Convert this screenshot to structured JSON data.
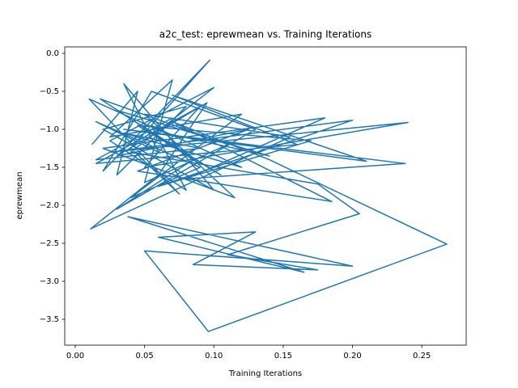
{
  "chart_data": {
    "type": "line",
    "title": "a2c_test: eprewmean vs. Training Iterations",
    "x_label": "Training Iterations",
    "y_label": "eprewmean",
    "xlim": [
      -0.0076,
      0.282
    ],
    "ylim": [
      -3.84,
      0.085
    ],
    "xticks": [
      {
        "value": 0,
        "label": "0.00"
      },
      {
        "value": 0.05,
        "label": "0.05"
      },
      {
        "value": 0.1,
        "label": "0.10"
      },
      {
        "value": 0.15,
        "label": "0.15"
      },
      {
        "value": 0.2,
        "label": "0.20"
      },
      {
        "value": 0.25,
        "label": "0.25"
      }
    ],
    "yticks": [
      {
        "value": 0,
        "label": "0.0"
      },
      {
        "value": -0.5,
        "label": "−0.5"
      },
      {
        "value": -1,
        "label": "−1.0"
      },
      {
        "value": -1.5,
        "label": "−1.5"
      },
      {
        "value": -2,
        "label": "−2.0"
      },
      {
        "value": -2.5,
        "label": "−2.5"
      },
      {
        "value": -3,
        "label": "−3.0"
      },
      {
        "value": -3.5,
        "label": "−3.5"
      }
    ],
    "grid": false,
    "series": [
      {
        "color": "#1f77b4",
        "x": [
          0.012,
          0.045,
          0.03,
          0.08,
          0.02,
          0.1,
          0.035,
          0.06,
          0.015,
          0.09,
          0.04,
          0.12,
          0.025,
          0.07,
          0.05,
          0.11,
          0.018,
          0.085,
          0.03,
          0.13,
          0.055,
          0.02,
          0.097,
          0.04,
          0.075,
          0.01,
          0.065,
          0.14,
          0.03,
          0.105,
          0.045,
          0.17,
          0.06,
          0.2,
          0.025,
          0.24,
          0.05,
          0.09,
          0.015,
          0.16,
          0.07,
          0.21,
          0.035,
          0.238,
          0.08,
          0.18,
          0.02,
          0.115,
          0.05,
          0.155,
          0.011,
          0.06,
          0.095,
          0.03,
          0.125,
          0.045,
          0.185,
          0.07,
          0.14,
          0.268,
          0.096,
          0.05,
          0.2,
          0.038,
          0.165,
          0.06,
          0.13,
          0.085,
          0.175,
          0.11,
          0.205,
          0.175,
          0.04,
          0.1,
          0.025,
          0.08,
          0.055,
          0.12,
          0.035,
          0.09,
          0.015,
          0.07
        ],
        "values": [
          -1.2,
          -0.5,
          -1.6,
          -0.7,
          -1.0,
          -1.8,
          -0.4,
          -1.3,
          -0.9,
          -1.5,
          -1.9,
          -0.8,
          -1.1,
          -0.35,
          -1.7,
          -1.2,
          -0.6,
          -1.4,
          -2.05,
          -1.0,
          -0.5,
          -1.55,
          -0.09,
          -1.25,
          -1.85,
          -0.6,
          -1.05,
          -1.35,
          -0.75,
          -1.6,
          -0.95,
          -1.15,
          -1.75,
          -0.88,
          -1.3,
          -0.91,
          -1.5,
          -0.7,
          -1.45,
          -1.2,
          -0.55,
          -1.42,
          -1.0,
          -1.45,
          -1.65,
          -0.85,
          -1.25,
          -1.9,
          -0.8,
          -1.1,
          -2.31,
          -1.6,
          -0.65,
          -1.35,
          -1.0,
          -1.55,
          -1.95,
          -0.9,
          -1.4,
          -2.51,
          -3.66,
          -2.6,
          -2.8,
          -2.15,
          -2.88,
          -2.42,
          -2.35,
          -2.78,
          -2.85,
          -2.65,
          -2.11,
          -1.72,
          -1.3,
          -0.45,
          -1.15,
          -1.8,
          -0.95,
          -1.5,
          -1.05,
          -1.25,
          -1.4,
          -0.85
        ]
      }
    ]
  }
}
